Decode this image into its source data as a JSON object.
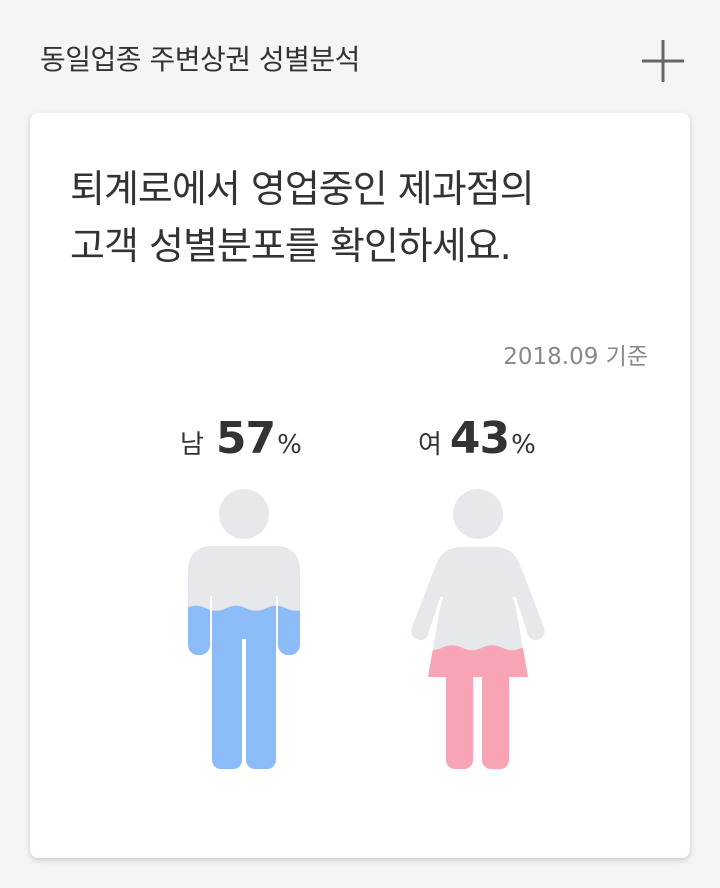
{
  "header": {
    "title": "동일업종 주변상권 성별분석",
    "add_icon": "plus-icon"
  },
  "card": {
    "headline_line1": "퇴계로에서 영업중인 제과점의",
    "headline_line2": "고객 성별분포를 확인하세요.",
    "basis": "2018.09 기준"
  },
  "stats": {
    "male": {
      "label": "남",
      "value": "57",
      "unit": "%",
      "fraction": 0.57,
      "color": "#8bbcf8"
    },
    "female": {
      "label": "여",
      "value": "43",
      "unit": "%",
      "fraction": 0.43,
      "color": "#f7a5b4"
    }
  },
  "colors": {
    "figure_base": "#e6e8ec",
    "background": "#f5f5f5",
    "card": "#ffffff"
  }
}
